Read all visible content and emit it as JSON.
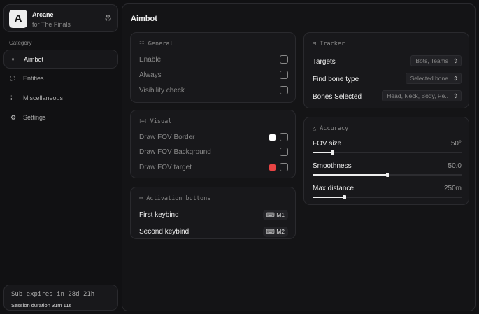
{
  "app": {
    "name": "Arcane",
    "subtitle": "for The Finals",
    "logo_letter": "A"
  },
  "sidebar": {
    "category_label": "Category",
    "items": [
      {
        "label": "Aimbot",
        "icon": "crosshair-icon",
        "active": true
      },
      {
        "label": "Entities",
        "icon": "scan-user-icon"
      },
      {
        "label": "Miscellaneous",
        "icon": "grid-icon"
      },
      {
        "label": "Settings",
        "icon": "gear-icon"
      }
    ]
  },
  "subscription": {
    "expires": "Sub expires in 28d 21h",
    "session": "Session duration 31m 11s"
  },
  "main": {
    "title": "Aimbot",
    "general": {
      "title": "General",
      "rows": [
        "Enable",
        "Always",
        "Visibility check"
      ]
    },
    "visual": {
      "title": "Visual",
      "rows": [
        {
          "label": "Draw FOV Border",
          "color": "#ffffff"
        },
        {
          "label": "Draw FOV Background"
        },
        {
          "label": "Draw FOV target",
          "color": "#e84444"
        }
      ]
    },
    "activation": {
      "title": "Activation buttons",
      "rows": [
        {
          "label": "First keybind",
          "key": "M1"
        },
        {
          "label": "Second keybind",
          "key": "M2"
        }
      ]
    },
    "tracker": {
      "title": "Tracker",
      "rows": [
        {
          "label": "Targets",
          "value": "Bots, Teams"
        },
        {
          "label": "Find bone type",
          "value": "Selected bone"
        },
        {
          "label": "Bones Selected",
          "value": "Head, Neck, Body, Pe.."
        }
      ]
    },
    "accuracy": {
      "title": "Accuracy",
      "sliders": [
        {
          "label": "FOV size",
          "value": "50°",
          "fraction": 0.13
        },
        {
          "label": "Smoothness",
          "value": "50.0",
          "fraction": 0.5
        },
        {
          "label": "Max distance",
          "value": "250m",
          "fraction": 0.21
        }
      ]
    }
  }
}
